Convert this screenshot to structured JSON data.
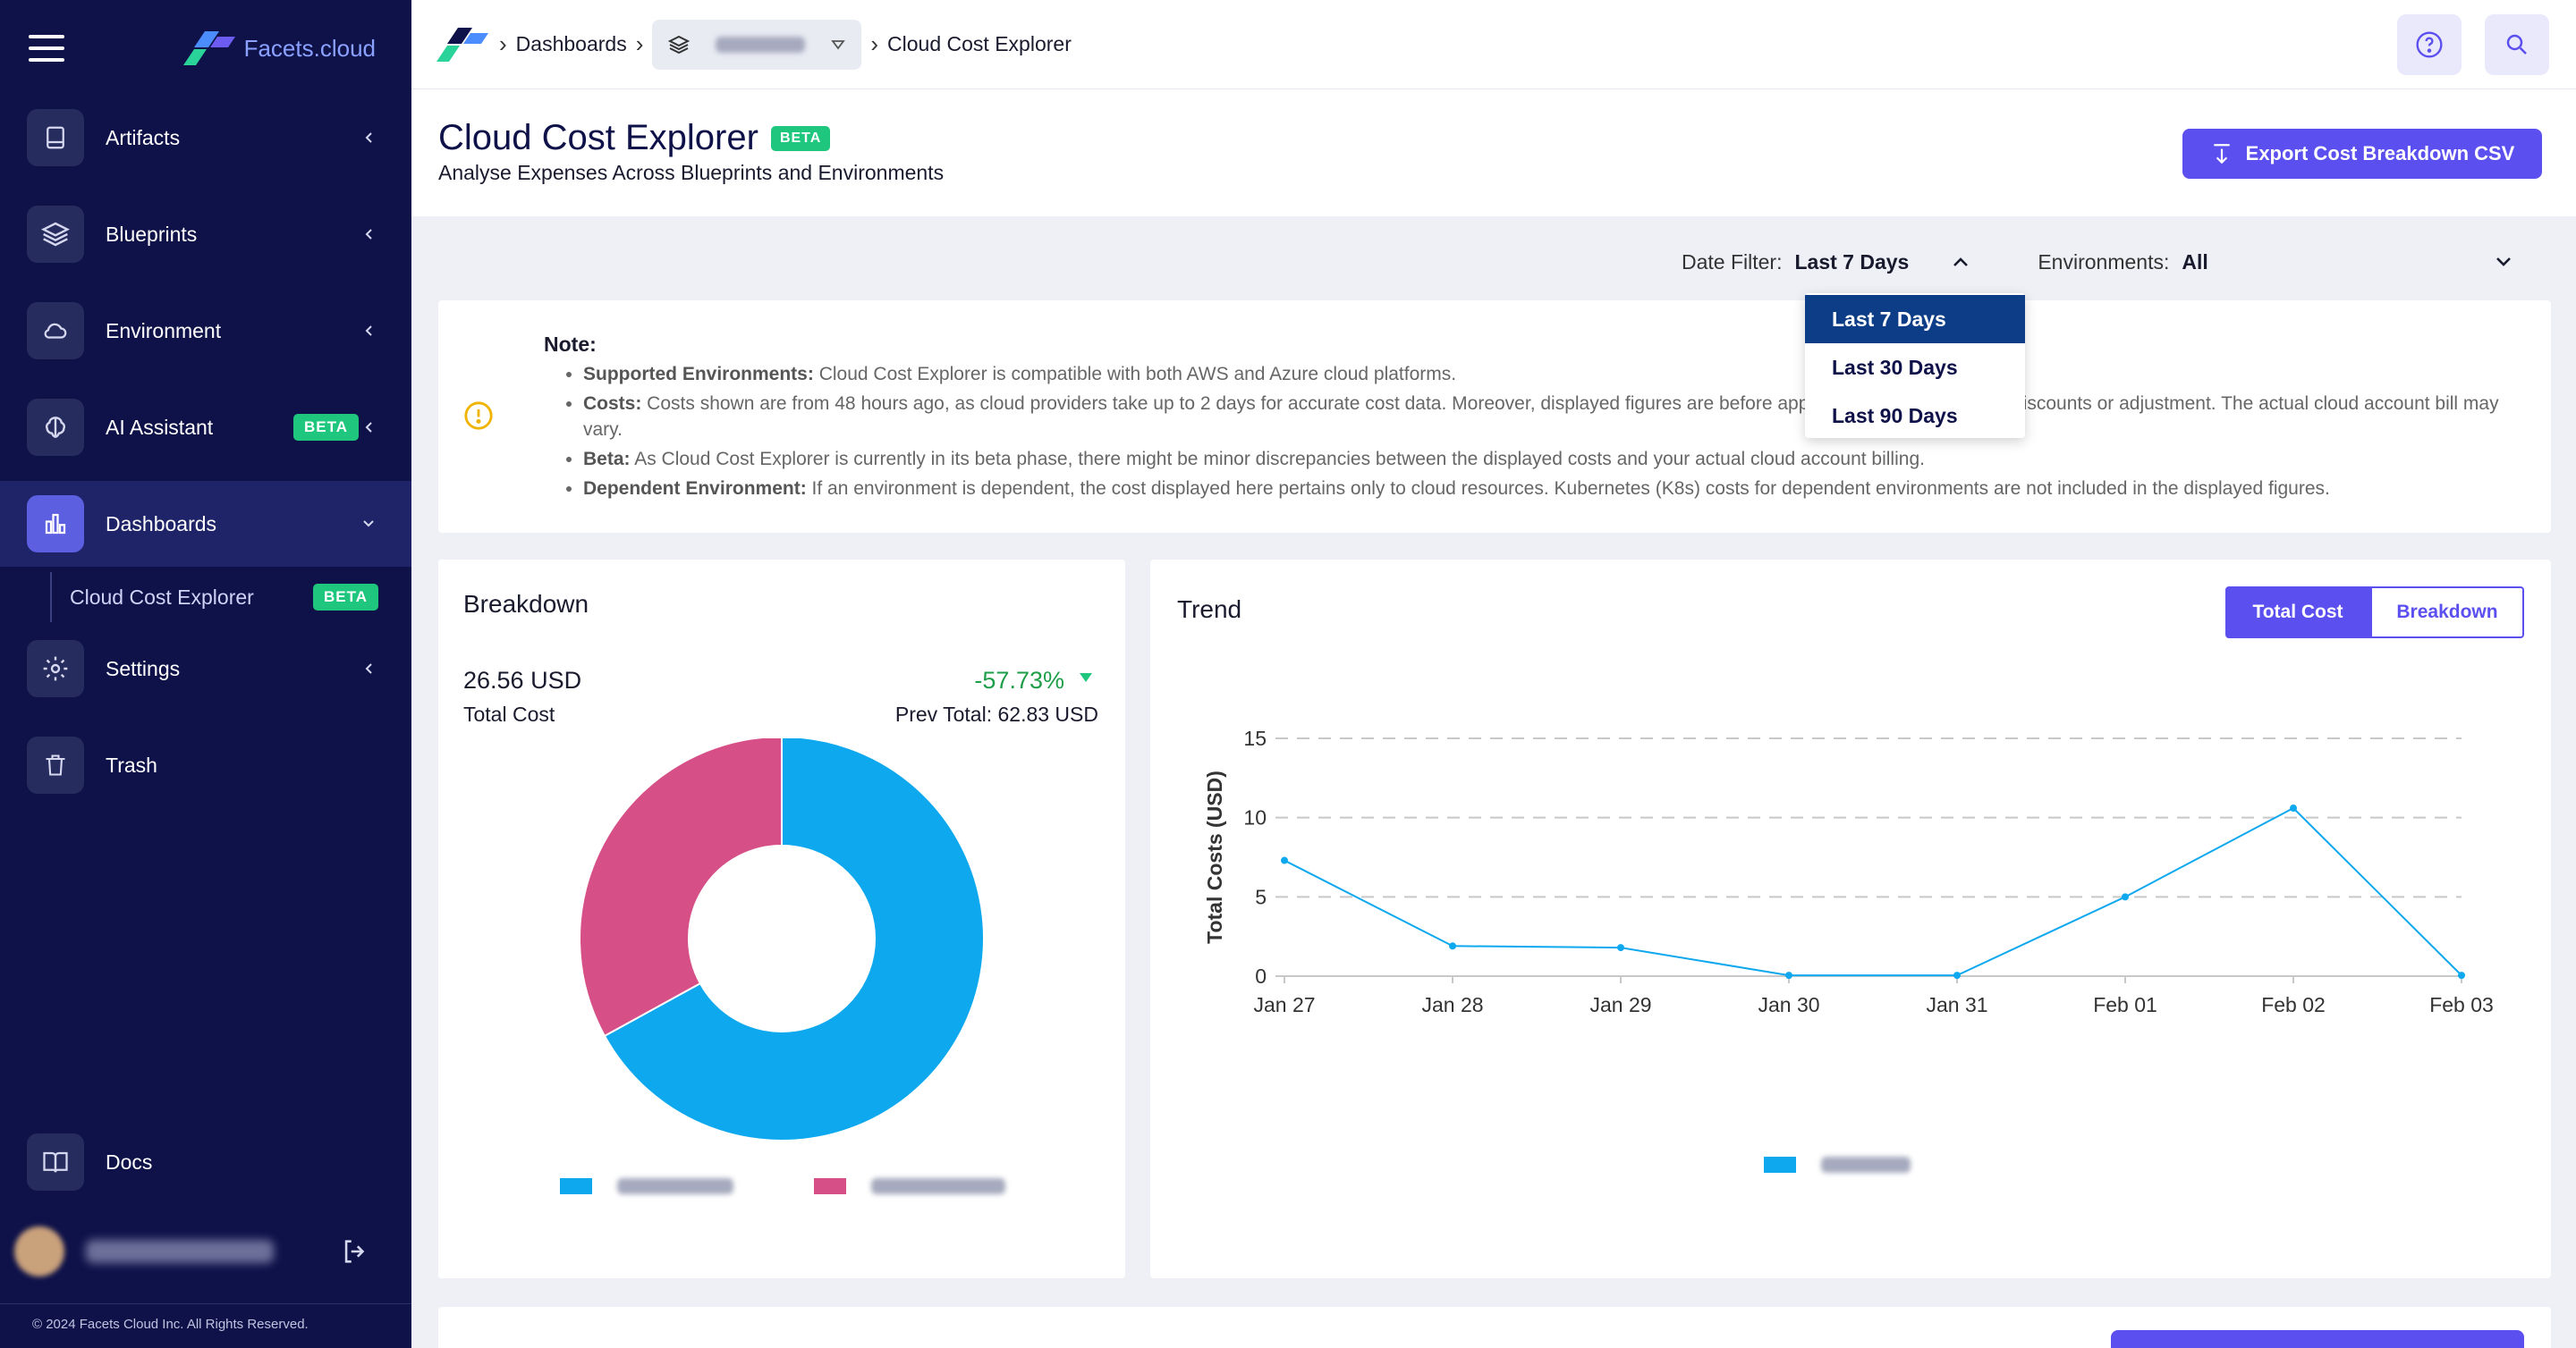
{
  "sidebar": {
    "brand": "Facets.cloud",
    "items": [
      {
        "label": "Artifacts",
        "icon": "book-icon"
      },
      {
        "label": "Blueprints",
        "icon": "layers-icon"
      },
      {
        "label": "Environment",
        "icon": "cloud-icon"
      },
      {
        "label": "AI Assistant",
        "icon": "brain-icon",
        "badge": "BETA"
      },
      {
        "label": "Dashboards",
        "icon": "bar-chart-icon"
      },
      {
        "label": "Settings",
        "icon": "gear-icon"
      },
      {
        "label": "Trash",
        "icon": "trash-icon"
      }
    ],
    "sub_item": {
      "label": "Cloud Cost Explorer",
      "badge": "BETA"
    },
    "docs": "Docs",
    "copyright": "© 2024 Facets Cloud Inc. All Rights Reserved."
  },
  "topbar": {
    "crumb_dashboards": "Dashboards",
    "crumb_current": "Cloud Cost Explorer"
  },
  "header": {
    "title": "Cloud Cost Explorer",
    "badge": "BETA",
    "subtitle": "Analyse Expenses Across Blueprints and Environments",
    "export_label": "Export Cost Breakdown CSV"
  },
  "filters": {
    "date_label": "Date Filter:",
    "date_value": "Last 7 Days",
    "env_label": "Environments:",
    "env_value": "All",
    "date_options": [
      "Last 7 Days",
      "Last 30 Days",
      "Last 90 Days"
    ]
  },
  "note": {
    "title": "Note:",
    "items": [
      {
        "bold": "Supported Environments:",
        "text": " Cloud Cost Explorer is compatible with both AWS and Azure cloud platforms."
      },
      {
        "bold": "Costs:",
        "text": " Costs shown are from 48 hours ago, as cloud providers take up to 2 days for accurate cost data. Moreover, displayed figures are before applying any corresponding discounts or adjustment. The actual cloud account bill may vary."
      },
      {
        "bold": "Beta:",
        "text": " As Cloud Cost Explorer is currently in its beta phase, there might be minor discrepancies between the displayed costs and your actual cloud account billing."
      },
      {
        "bold": "Dependent Environment:",
        "text": " If an environment is dependent, the cost displayed here pertains only to cloud resources. Kubernetes (K8s) costs for dependent environments are not included in the displayed figures."
      }
    ]
  },
  "breakdown": {
    "title": "Breakdown",
    "total_value": "26.56 USD",
    "total_label": "Total Cost",
    "change": "-57.73%",
    "prev_total": "Prev Total: 62.83 USD"
  },
  "trend": {
    "title": "Trend",
    "toggle_on": "Total Cost",
    "toggle_off": "Breakdown"
  },
  "colors": {
    "accent": "#5b4ff0",
    "sidebar": "#0f1249",
    "series_blue": "#0ea8ef",
    "series_pink": "#d64f86",
    "positive": "#1e9e49"
  },
  "chart_data": [
    {
      "type": "pie",
      "title": "Breakdown",
      "donut": true,
      "values": [
        67,
        33
      ],
      "colors": [
        "#0ea8ef",
        "#d64f86"
      ]
    },
    {
      "type": "line",
      "title": "Trend",
      "ylabel": "Total Costs (USD)",
      "x": [
        "Jan 27",
        "Jan 28",
        "Jan 29",
        "Jan 30",
        "Jan 31",
        "Feb 01",
        "Feb 02",
        "Feb 03"
      ],
      "series": [
        {
          "values": [
            7.3,
            1.9,
            1.8,
            0.05,
            0.05,
            5.0,
            10.6,
            0.05
          ],
          "color": "#0ea8ef"
        }
      ],
      "ylim": [
        0,
        15
      ],
      "yticks": [
        0,
        5,
        10,
        15
      ],
      "grid": true,
      "legend": "bottom"
    }
  ]
}
